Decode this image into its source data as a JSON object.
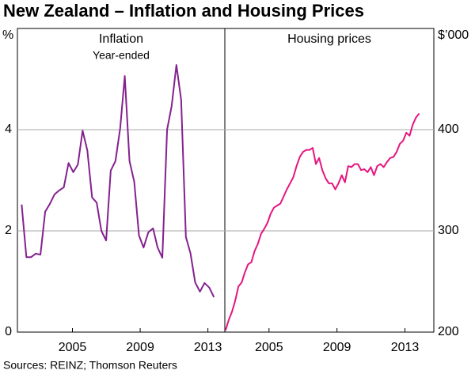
{
  "title": "New Zealand – Inflation and Housing Prices",
  "source": "Sources: REINZ; Thomson Reuters",
  "chart_data": [
    {
      "type": "line",
      "title": "Inflation",
      "subtitle": "Year-ended",
      "ylabel": "%",
      "color": "#84218f",
      "xlim": [
        2001.75,
        2014.0
      ],
      "xticks": [
        2005,
        2009,
        2013
      ],
      "ylim": [
        0,
        6
      ],
      "yticks": [
        0,
        2,
        4
      ],
      "grid": true,
      "yaxis_side": "left",
      "x": [
        2002.0,
        2002.28,
        2002.55,
        2002.83,
        2003.11,
        2003.39,
        2003.66,
        2003.94,
        2004.22,
        2004.49,
        2004.77,
        2005.05,
        2005.32,
        2005.6,
        2005.88,
        2006.16,
        2006.43,
        2006.71,
        2006.99,
        2007.26,
        2007.54,
        2007.82,
        2008.09,
        2008.37,
        2008.65,
        2008.93,
        2009.2,
        2009.48,
        2009.76,
        2010.03,
        2010.31,
        2010.59,
        2010.86,
        2011.14,
        2011.42,
        2011.7,
        2011.97,
        2012.25,
        2012.53,
        2012.8,
        2013.08,
        2013.36
      ],
      "values": [
        2.52,
        1.48,
        1.48,
        1.55,
        1.53,
        2.38,
        2.53,
        2.72,
        2.8,
        2.86,
        3.34,
        3.16,
        3.31,
        3.98,
        3.59,
        2.66,
        2.56,
        2.0,
        1.81,
        3.19,
        3.38,
        4.03,
        5.06,
        3.38,
        2.97,
        1.91,
        1.67,
        1.97,
        2.05,
        1.67,
        1.47,
        4.0,
        4.47,
        5.28,
        4.59,
        1.88,
        1.56,
        0.98,
        0.8,
        0.97,
        0.88,
        0.69
      ]
    },
    {
      "type": "line",
      "title": "Housing prices",
      "ylabel": "$’000",
      "color": "#e5157f",
      "xlim": [
        2002.4,
        2014.7
      ],
      "xticks": [
        2005,
        2009,
        2013
      ],
      "ylim": [
        200,
        500
      ],
      "yticks": [
        200,
        300,
        400
      ],
      "grid": true,
      "yaxis_side": "right",
      "x": [
        2002.44,
        2002.63,
        2002.82,
        2003.01,
        2003.2,
        2003.39,
        2003.58,
        2003.77,
        2003.96,
        2004.15,
        2004.34,
        2004.53,
        2004.72,
        2004.91,
        2005.1,
        2005.29,
        2005.48,
        2005.67,
        2005.86,
        2006.05,
        2006.24,
        2006.43,
        2006.62,
        2006.81,
        2007.0,
        2007.19,
        2007.38,
        2007.57,
        2007.76,
        2007.95,
        2008.14,
        2008.33,
        2008.52,
        2008.71,
        2008.9,
        2009.09,
        2009.28,
        2009.47,
        2009.66,
        2009.85,
        2010.04,
        2010.23,
        2010.42,
        2010.61,
        2010.8,
        2010.99,
        2011.18,
        2011.37,
        2011.56,
        2011.75,
        2011.94,
        2012.13,
        2012.32,
        2012.51,
        2012.7,
        2012.89,
        2013.08,
        2013.27,
        2013.46,
        2013.65,
        2013.84
      ],
      "values": [
        201.6,
        212,
        220,
        231,
        245,
        249,
        259,
        267,
        269,
        280,
        287,
        297,
        302,
        308,
        317,
        323,
        325,
        327,
        334,
        341,
        347,
        353,
        364,
        373,
        378,
        380,
        380,
        382,
        366,
        372,
        360,
        352,
        347,
        347,
        341,
        347,
        355,
        348,
        364,
        363,
        366,
        366,
        360,
        361,
        358,
        363,
        355,
        364,
        366,
        363,
        368,
        372,
        373,
        378,
        386,
        389,
        397,
        394,
        405,
        412,
        416
      ]
    }
  ]
}
